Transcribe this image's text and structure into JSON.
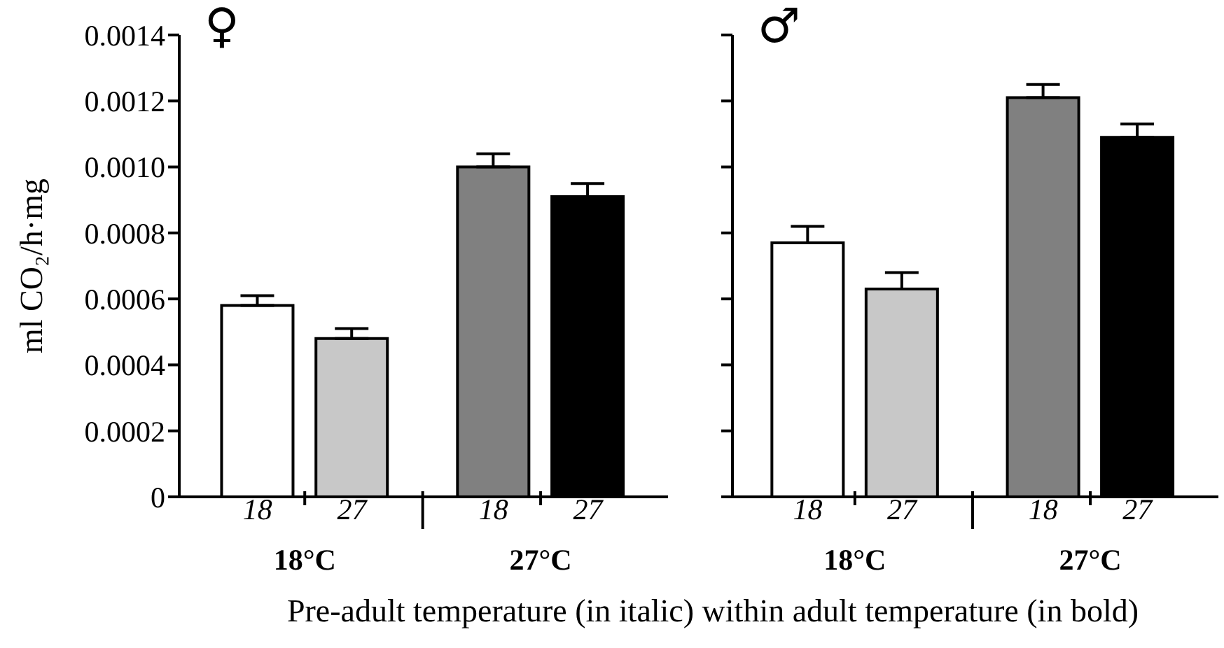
{
  "chart_data": [
    {
      "type": "bar",
      "title": "♀",
      "ylabel": "ml CO₂/h·mg",
      "categories": [
        "18",
        "27",
        "18",
        "27"
      ],
      "values": [
        0.00058,
        0.00048,
        0.001,
        0.00091
      ],
      "errors": [
        [
          0.00058,
          0.00061
        ],
        [
          0.00048,
          0.00051
        ],
        [
          0.001,
          0.00104
        ],
        [
          0.00091,
          0.00095
        ]
      ],
      "colors": [
        "#ffffff",
        "#c8c8c8",
        "#808080",
        "#000000"
      ],
      "ylim": [
        0,
        0.0014
      ],
      "yticks": [
        0,
        0.0002,
        0.0004,
        0.0006,
        0.0008,
        {
          "value": 0.001,
          "label": "0.0010"
        },
        0.0012,
        0.0014
      ],
      "annotations": [
        "18°C",
        "27°C"
      ]
    },
    {
      "type": "bar",
      "title": "♂",
      "xlabel": "Pre-adult temperature (in italic) within adult temperature (in bold)",
      "categories": [
        "18",
        "27",
        "18",
        "27"
      ],
      "values": [
        0.00077,
        0.00063,
        0.00121,
        0.00109
      ],
      "errors": [
        [
          0.00077,
          0.00082
        ],
        [
          0.00063,
          0.00068
        ],
        [
          0.00121,
          0.00125
        ],
        [
          0.00109,
          0.00113
        ]
      ],
      "colors": [
        "#ffffff",
        "#c8c8c8",
        "#808080",
        "#000000"
      ],
      "ylim": [
        0,
        0.0014
      ],
      "yticks": [
        0,
        0.0002,
        0.0004,
        0.0006,
        0.0008,
        0.001,
        0.0012,
        0.0014
      ],
      "tick_labels": "x",
      "annotations": [
        "18°C",
        "27°C"
      ]
    }
  ]
}
